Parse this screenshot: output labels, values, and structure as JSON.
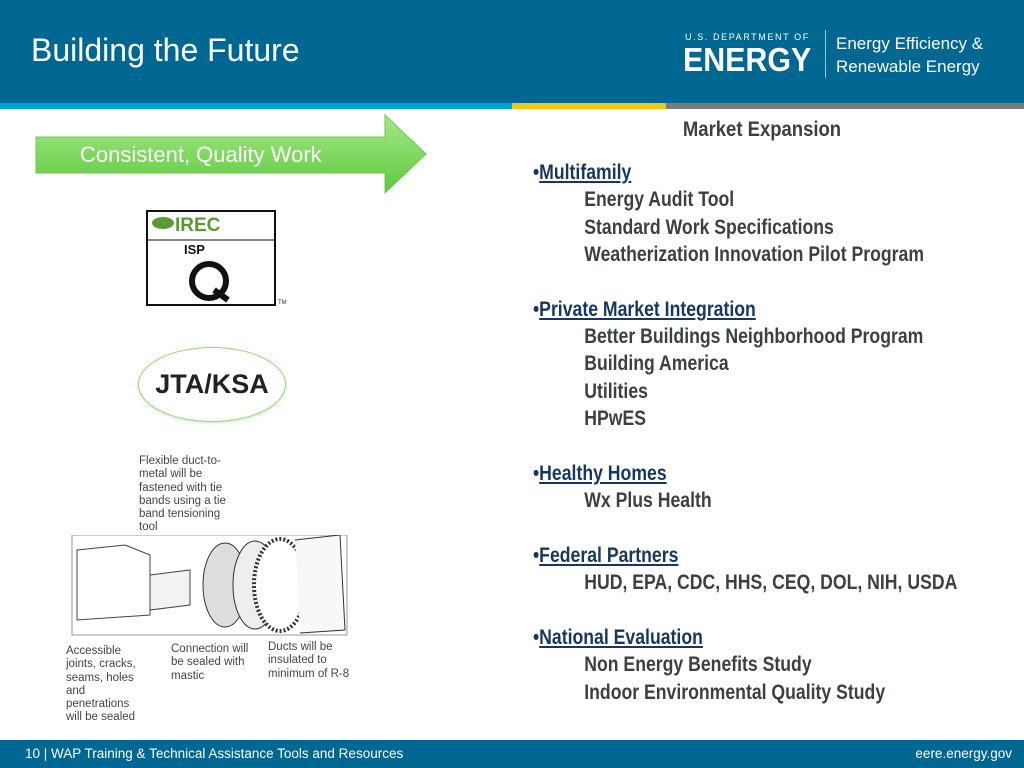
{
  "header": {
    "title": "Building the Future",
    "logo_small": "U.S. DEPARTMENT OF",
    "logo_big": "ENERGY",
    "office_line1": "Energy Efficiency &",
    "office_line2": "Renewable Energy"
  },
  "colors": {
    "header": "#006792",
    "stripe_blue": "#00a0dd",
    "stripe_yellow": "#f3c517",
    "stripe_gray": "#7b7b7b",
    "arrow_green": "#7ed957",
    "heading": "#17375e"
  },
  "left": {
    "arrow_label": "Consistent, Quality Work",
    "logo_text": "IREC ISPQ",
    "oval_label": "JTA/KSA",
    "diagram_labels": {
      "tie": [
        "Flexible duct-to-",
        "metal will be",
        "fastened with tie",
        "bands using a tie",
        "band tensioning",
        "tool"
      ],
      "joints": [
        "Accessible",
        "joints, cracks,",
        "seams, holes",
        "and",
        "penetrations",
        "will be sealed"
      ],
      "connection": [
        "Connection will",
        "be sealed with",
        "mastic"
      ],
      "ducts": [
        "Ducts will be",
        "insulated to",
        "minimum of R-8"
      ]
    }
  },
  "market": {
    "title": "Market Expansion",
    "groups": [
      {
        "heading": "Multifamily",
        "items": [
          "Energy Audit Tool",
          "Standard Work Specifications",
          "Weatherization Innovation Pilot Program"
        ]
      },
      {
        "heading": "Private Market Integration",
        "items": [
          "Better Buildings Neighborhood Program",
          "Building America",
          "Utilities",
          "HPwES"
        ]
      },
      {
        "heading": "Healthy Homes",
        "items": [
          "Wx Plus Health"
        ]
      },
      {
        "heading": "Federal Partners",
        "items": [
          "HUD, EPA, CDC, HHS, CEQ, DOL, NIH, USDA"
        ]
      },
      {
        "heading": "National Evaluation",
        "items": [
          "Non Energy Benefits Study",
          "Indoor Environmental Quality Study"
        ]
      }
    ]
  },
  "footer": {
    "left": "10 | WAP Training & Technical Assistance Tools and Resources",
    "right": "eere.energy.gov"
  }
}
